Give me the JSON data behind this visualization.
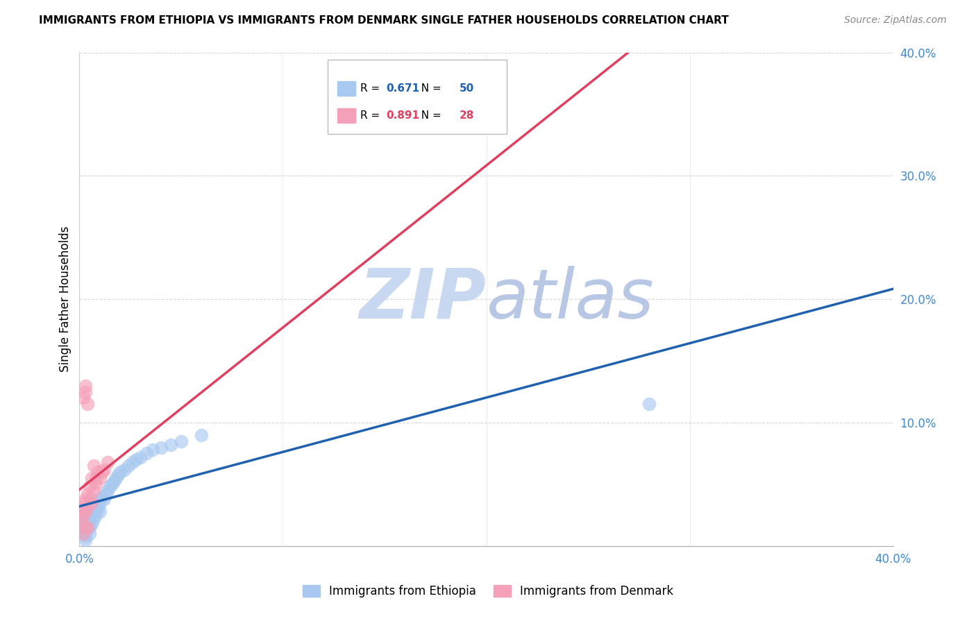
{
  "title": "IMMIGRANTS FROM ETHIOPIA VS IMMIGRANTS FROM DENMARK SINGLE FATHER HOUSEHOLDS CORRELATION CHART",
  "source": "Source: ZipAtlas.com",
  "ylabel": "Single Father Households",
  "legend_ethiopia": "Immigrants from Ethiopia",
  "legend_denmark": "Immigrants from Denmark",
  "r_ethiopia": 0.671,
  "n_ethiopia": 50,
  "r_denmark": 0.891,
  "n_denmark": 28,
  "color_ethiopia": "#A8C8F0",
  "color_denmark": "#F4A0B8",
  "line_color_ethiopia": "#2060B0",
  "line_color_denmark": "#E04060",
  "watermark_zip": "ZIP",
  "watermark_atlas": "atlas",
  "watermark_color_zip": "#C8D8F0",
  "watermark_color_atlas": "#C0C8E8",
  "xlim": [
    0.0,
    0.4
  ],
  "ylim": [
    0.0,
    0.4
  ],
  "yticks_right": [
    0.1,
    0.2,
    0.3,
    0.4
  ],
  "ethiopia_x": [
    0.001,
    0.001,
    0.002,
    0.002,
    0.002,
    0.003,
    0.003,
    0.003,
    0.003,
    0.004,
    0.004,
    0.004,
    0.005,
    0.005,
    0.005,
    0.005,
    0.006,
    0.006,
    0.007,
    0.007,
    0.007,
    0.008,
    0.008,
    0.009,
    0.009,
    0.01,
    0.01,
    0.011,
    0.012,
    0.013,
    0.014,
    0.015,
    0.016,
    0.017,
    0.018,
    0.019,
    0.02,
    0.022,
    0.024,
    0.026,
    0.028,
    0.03,
    0.033,
    0.036,
    0.04,
    0.045,
    0.05,
    0.06,
    0.28,
    0.003
  ],
  "ethiopia_y": [
    0.015,
    0.02,
    0.01,
    0.018,
    0.022,
    0.012,
    0.018,
    0.025,
    0.008,
    0.015,
    0.02,
    0.028,
    0.01,
    0.015,
    0.02,
    0.025,
    0.018,
    0.03,
    0.022,
    0.028,
    0.035,
    0.025,
    0.032,
    0.03,
    0.038,
    0.028,
    0.035,
    0.04,
    0.038,
    0.042,
    0.045,
    0.048,
    0.05,
    0.052,
    0.055,
    0.058,
    0.06,
    0.062,
    0.065,
    0.068,
    0.07,
    0.072,
    0.075,
    0.078,
    0.08,
    0.082,
    0.085,
    0.09,
    0.115,
    0.005
  ],
  "denmark_x": [
    0.001,
    0.001,
    0.002,
    0.002,
    0.002,
    0.003,
    0.003,
    0.003,
    0.004,
    0.004,
    0.004,
    0.005,
    0.005,
    0.006,
    0.006,
    0.007,
    0.007,
    0.008,
    0.008,
    0.009,
    0.01,
    0.011,
    0.012,
    0.014,
    0.002,
    0.003,
    0.004,
    0.003
  ],
  "denmark_y": [
    0.02,
    0.03,
    0.025,
    0.035,
    0.01,
    0.028,
    0.038,
    0.015,
    0.032,
    0.042,
    0.015,
    0.038,
    0.048,
    0.035,
    0.055,
    0.045,
    0.065,
    0.05,
    0.055,
    0.06,
    0.055,
    0.06,
    0.062,
    0.068,
    0.12,
    0.13,
    0.115,
    0.125
  ]
}
